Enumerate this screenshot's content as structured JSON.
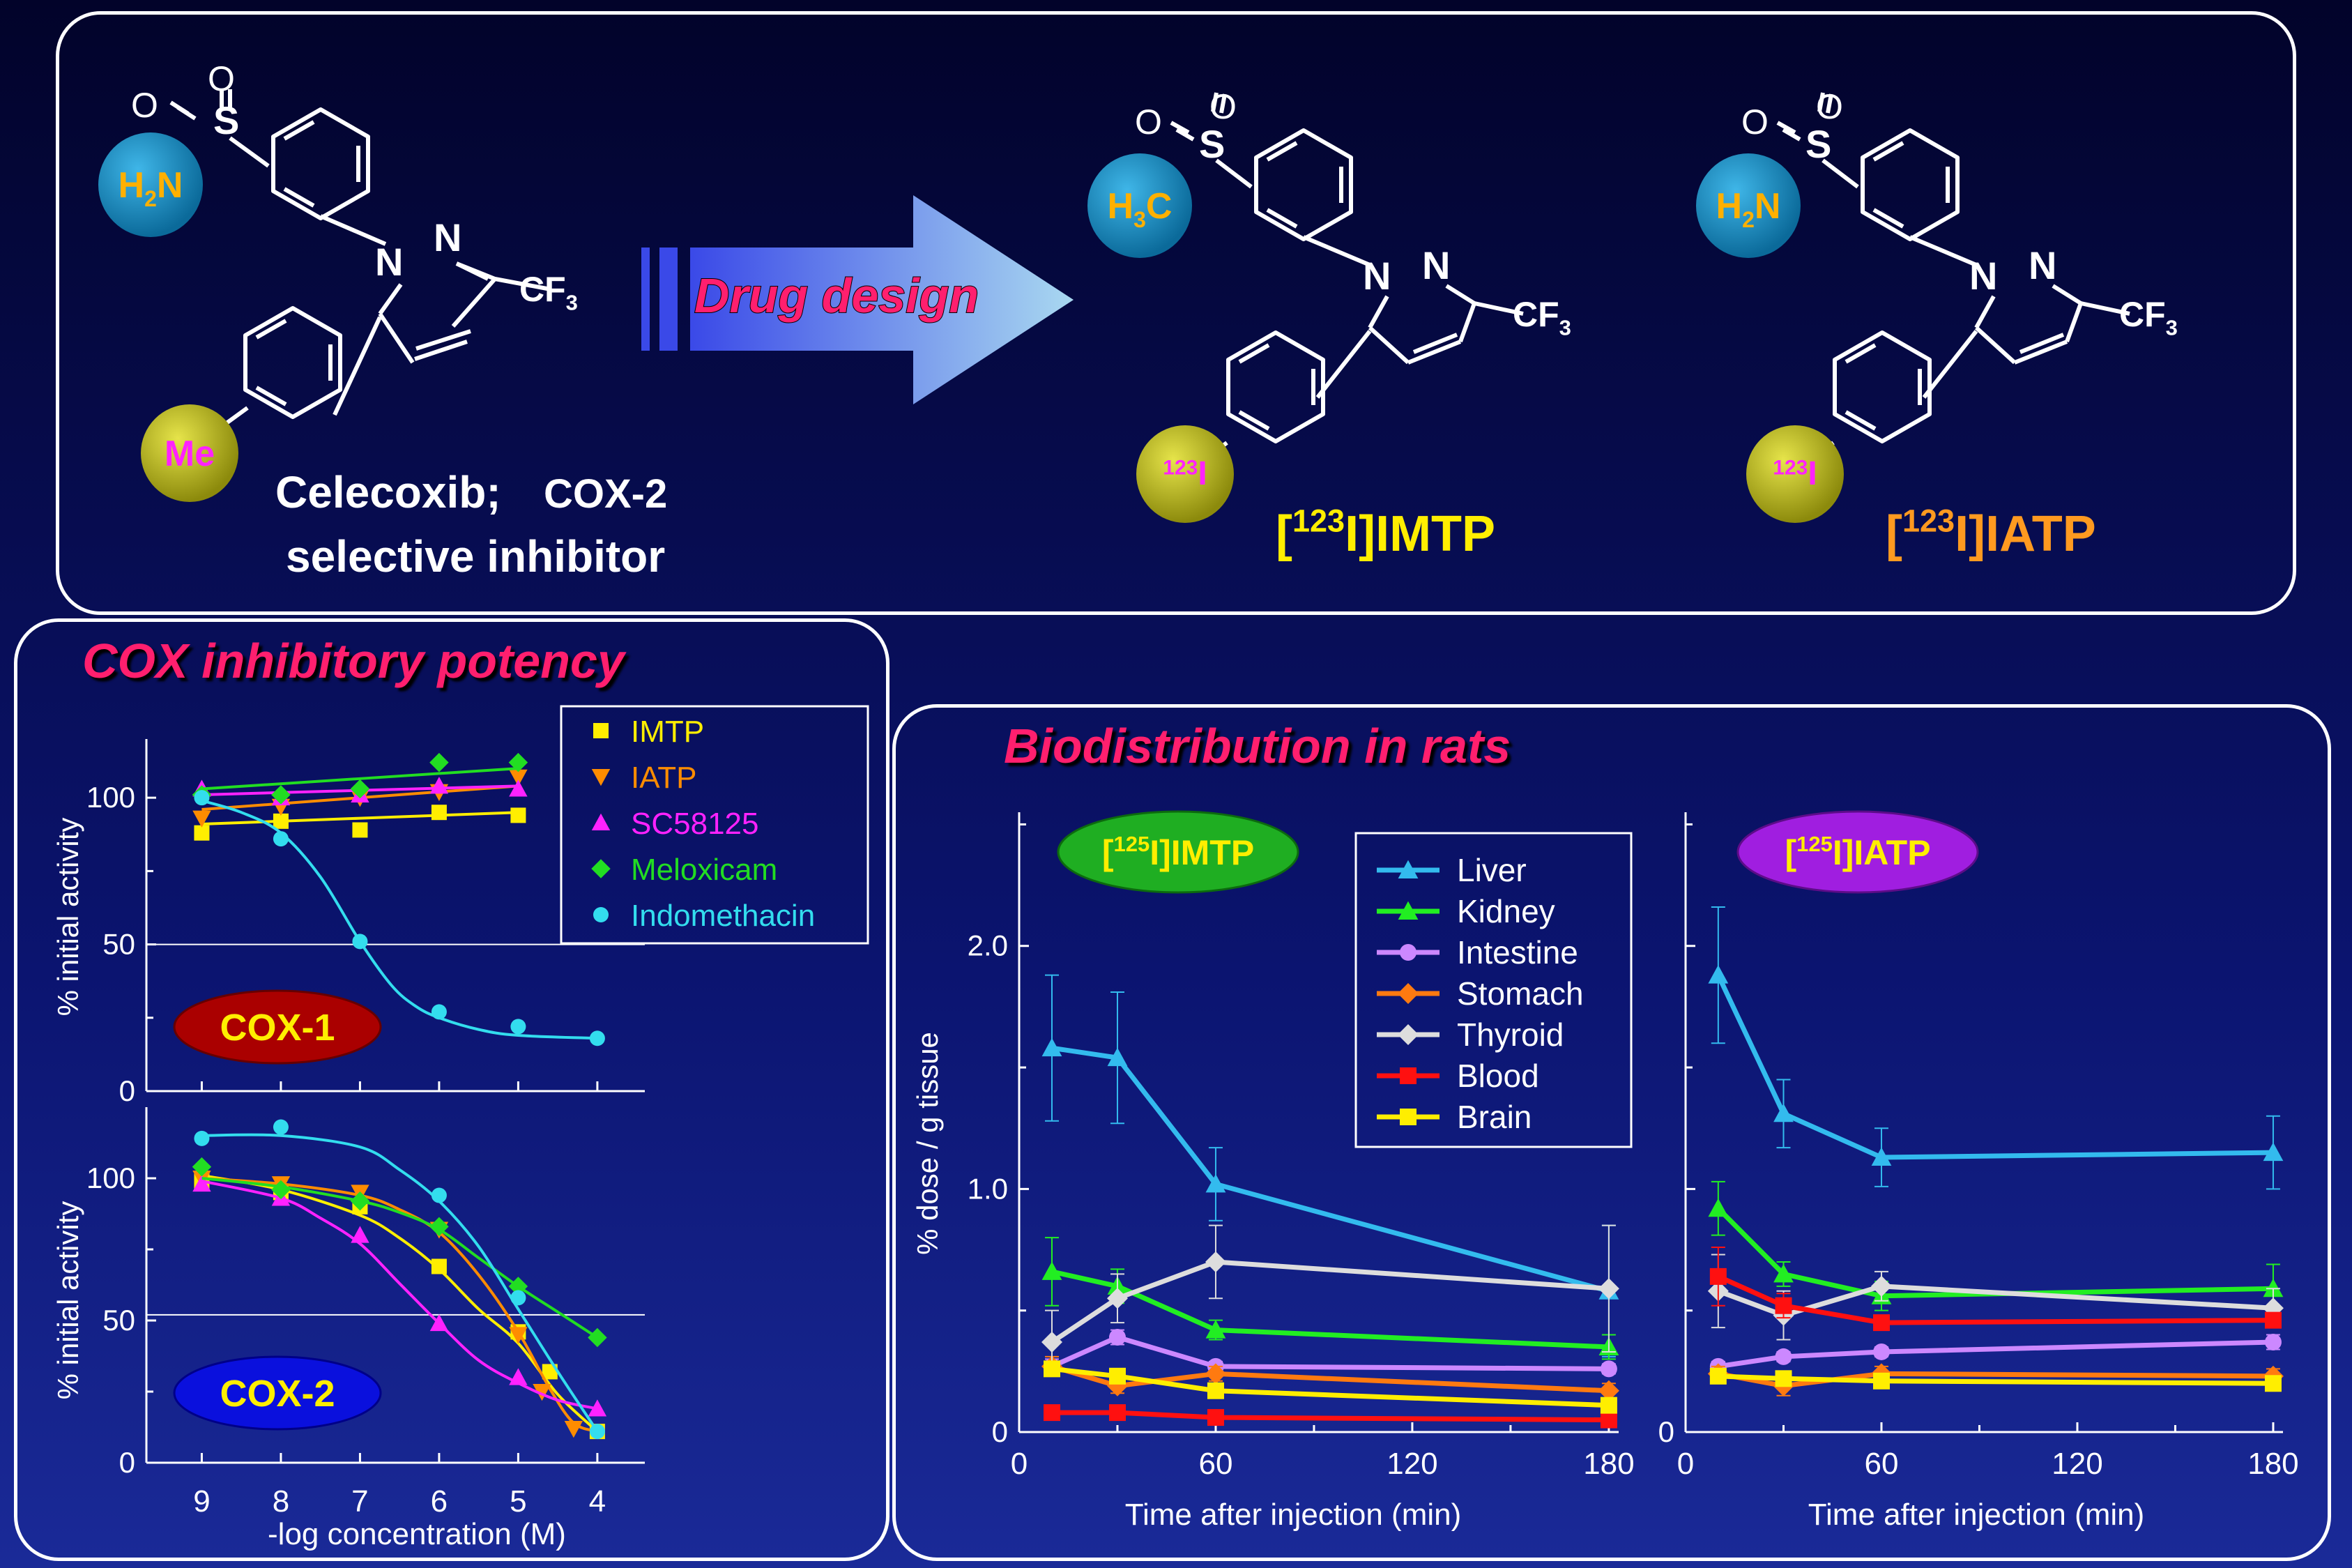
{
  "top": {
    "celecoxib": {
      "label_line1_a": "Celecoxib;",
      "label_line1_b": "COX-2",
      "label_line2": "selective inhibitor",
      "sulfonamide_group": "H2N",
      "methyl_group": "Me"
    },
    "arrow_label": "Drug design",
    "imtp": {
      "name": "[123I]IMTP",
      "group": "H3C",
      "isotope": "123I"
    },
    "iatp": {
      "name": "[123I]IATP",
      "group": "H2N",
      "isotope": "123I"
    },
    "cf3": "CF3",
    "atoms": {
      "S": "S",
      "O": "O",
      "N": "N"
    }
  },
  "cox_panel": {
    "title": "COX inhibitory potency",
    "legend": [
      "IMTP",
      "IATP",
      "SC58125",
      "Meloxicam",
      "Indomethacin"
    ],
    "cox1_badge": "COX-1",
    "cox2_badge": "COX-2",
    "ylabel": "% initial activity",
    "xlabel": "-log concentration (M)"
  },
  "bio_panel": {
    "title": "Biodistribution in rats",
    "ylabel": "% dose / g tissue",
    "xlabel": "Time after injection (min)",
    "left_badge": "[125I]IMTP",
    "right_badge": "[125I]IATP",
    "legend": [
      "Liver",
      "Kidney",
      "Intestine",
      "Stomach",
      "Thyroid",
      "Blood",
      "Brain"
    ]
  },
  "colors": {
    "IMTP": "#ffee00",
    "IATP": "#ff8c00",
    "SC58125": "#ff22ff",
    "Meloxicam": "#22dd22",
    "Indomethacin": "#33ddee",
    "Liver": "#33bbee",
    "Kidney": "#22ee22",
    "Intestine": "#cc88ff",
    "Stomach": "#ff7a10",
    "Thyroid": "#dddddd",
    "Blood": "#ff1010",
    "Brain": "#ffee00",
    "title_pink": "#ff1f6e"
  },
  "chart_data": [
    {
      "type": "scatter",
      "title": "COX-1",
      "xlabel": "-log concentration (M)",
      "ylabel": "% initial activity",
      "x_ticks": [
        9,
        8,
        7,
        6,
        5,
        4
      ],
      "y_ticks": [
        0,
        50,
        100
      ],
      "xlim": [
        9.7,
        3.4
      ],
      "ylim": [
        0,
        120
      ],
      "reference_line": 50,
      "series": [
        {
          "name": "IMTP",
          "marker": "square",
          "x": [
            9,
            8,
            7,
            6,
            5
          ],
          "y": [
            88,
            92,
            89,
            95,
            94
          ],
          "fit": [
            [
              9,
              91
            ],
            [
              5,
              95
            ]
          ]
        },
        {
          "name": "IATP",
          "marker": "triangle-down",
          "x": [
            9,
            8,
            7,
            6,
            5
          ],
          "y": [
            93,
            97,
            100,
            102,
            107
          ],
          "fit": [
            [
              9,
              96
            ],
            [
              5,
              104
            ]
          ]
        },
        {
          "name": "SC58125",
          "marker": "triangle-up",
          "x": [
            9,
            8,
            7,
            6,
            5
          ],
          "y": [
            103,
            100,
            101,
            104,
            103
          ],
          "fit": [
            [
              9,
              101
            ],
            [
              5,
              104
            ]
          ]
        },
        {
          "name": "Meloxicam",
          "marker": "diamond",
          "x": [
            9,
            8,
            7,
            6,
            5
          ],
          "y": [
            101,
            101,
            103,
            112,
            112
          ],
          "fit": [
            [
              9,
              103
            ],
            [
              5,
              110
            ]
          ]
        },
        {
          "name": "Indomethacin",
          "marker": "circle",
          "x": [
            9,
            8,
            7,
            6,
            5,
            4
          ],
          "y": [
            100,
            86,
            51,
            27,
            22,
            18
          ],
          "fit": [
            [
              9,
              99
            ],
            [
              8.5,
              95
            ],
            [
              8,
              88
            ],
            [
              7.5,
              73
            ],
            [
              7,
              51
            ],
            [
              6.6,
              36
            ],
            [
              6.3,
              29
            ],
            [
              6,
              25
            ],
            [
              5.5,
              21
            ],
            [
              5,
              19
            ],
            [
              4,
              18
            ]
          ]
        }
      ]
    },
    {
      "type": "scatter",
      "title": "COX-2",
      "xlabel": "-log concentration (M)",
      "ylabel": "% initial activity",
      "x_ticks": [
        9,
        8,
        7,
        6,
        5,
        4
      ],
      "y_ticks": [
        0,
        50,
        100
      ],
      "xlim": [
        9.7,
        3.4
      ],
      "ylim": [
        0,
        125
      ],
      "reference_line": 52,
      "series": [
        {
          "name": "IMTP",
          "marker": "square",
          "x": [
            9,
            8,
            7,
            6,
            5,
            4.6,
            4
          ],
          "y": [
            99,
            95,
            90,
            69,
            46,
            32,
            11
          ],
          "fit": [
            [
              9,
              101
            ],
            [
              8,
              96
            ],
            [
              7,
              87
            ],
            [
              6.5,
              79
            ],
            [
              6,
              68
            ],
            [
              5.5,
              54
            ],
            [
              5,
              42
            ],
            [
              4.5,
              24
            ],
            [
              4,
              11
            ]
          ]
        },
        {
          "name": "IATP",
          "marker": "triangle-down",
          "x": [
            9,
            8,
            7,
            6,
            5,
            4.7,
            4.3
          ],
          "y": [
            100,
            98,
            95,
            82,
            45,
            25,
            12
          ],
          "fit": [
            [
              9,
              100
            ],
            [
              8,
              98
            ],
            [
              7,
              94
            ],
            [
              6.5,
              89
            ],
            [
              6,
              81
            ],
            [
              5.5,
              66
            ],
            [
              5,
              46
            ],
            [
              4.6,
              26
            ],
            [
              4.3,
              14
            ],
            [
              4,
              11
            ]
          ]
        },
        {
          "name": "SC58125",
          "marker": "triangle-up",
          "x": [
            9,
            8,
            7,
            6,
            5,
            4
          ],
          "y": [
            98,
            93,
            80,
            49,
            30,
            19
          ],
          "fit": [
            [
              9,
              99
            ],
            [
              8,
              93
            ],
            [
              7.5,
              86
            ],
            [
              7,
              77
            ],
            [
              6.5,
              63
            ],
            [
              6,
              49
            ],
            [
              5.5,
              36
            ],
            [
              5,
              28
            ],
            [
              4.5,
              22
            ],
            [
              4,
              19
            ]
          ]
        },
        {
          "name": "Meloxicam",
          "marker": "diamond",
          "x": [
            9,
            8,
            7,
            6,
            5,
            4
          ],
          "y": [
            104,
            96,
            92,
            83,
            62,
            44
          ],
          "fit": [
            [
              9,
              100
            ],
            [
              8,
              97
            ],
            [
              7,
              92
            ],
            [
              6.5,
              88
            ],
            [
              6,
              82
            ],
            [
              5.5,
              72
            ],
            [
              5,
              62
            ],
            [
              4.5,
              53
            ],
            [
              4,
              44
            ]
          ]
        },
        {
          "name": "Indomethacin",
          "marker": "circle",
          "x": [
            9,
            8,
            6,
            5,
            4
          ],
          "y": [
            114,
            118,
            94,
            58,
            11
          ],
          "fit": [
            [
              9,
              115
            ],
            [
              8,
              115
            ],
            [
              7,
              111
            ],
            [
              6.5,
              103
            ],
            [
              6,
              92
            ],
            [
              5.5,
              76
            ],
            [
              5,
              54
            ],
            [
              4.5,
              32
            ],
            [
              4,
              11
            ]
          ]
        }
      ]
    },
    {
      "type": "line",
      "title": "[125I]IMTP",
      "xlabel": "Time after injection (min)",
      "ylabel": "% dose / g tissue",
      "x_ticks": [
        0,
        60,
        120,
        180
      ],
      "y_ticks": [
        0,
        1.0,
        2.0
      ],
      "y_tick_labels": [
        "0",
        "1.0",
        "2.0"
      ],
      "xlim": [
        0,
        183
      ],
      "ylim": [
        0,
        2.55
      ],
      "series": [
        {
          "name": "Liver",
          "marker": "triangle-up",
          "x": [
            10,
            30,
            60,
            180
          ],
          "y": [
            1.58,
            1.54,
            1.02,
            0.58
          ],
          "err": [
            0.3,
            0.27,
            0.15,
            0.27
          ]
        },
        {
          "name": "Kidney",
          "marker": "triangle-up",
          "x": [
            10,
            30,
            60,
            180
          ],
          "y": [
            0.66,
            0.6,
            0.42,
            0.35
          ],
          "err": [
            0.14,
            0.07,
            0.04,
            0.05
          ]
        },
        {
          "name": "Intestine",
          "marker": "circle",
          "x": [
            10,
            30,
            60,
            180
          ],
          "y": [
            0.27,
            0.39,
            0.27,
            0.26
          ],
          "err": [
            0.03,
            0.03,
            0.02,
            0.02
          ]
        },
        {
          "name": "Stomach",
          "marker": "diamond",
          "x": [
            10,
            30,
            60,
            180
          ],
          "y": [
            0.27,
            0.19,
            0.24,
            0.17
          ],
          "err": [
            0.04,
            0.03,
            0.03,
            0.03
          ]
        },
        {
          "name": "Thyroid",
          "marker": "diamond",
          "x": [
            10,
            30,
            60,
            180
          ],
          "y": [
            0.37,
            0.55,
            0.7,
            0.59
          ],
          "err": [
            0.13,
            0.1,
            0.15,
            0.26
          ]
        },
        {
          "name": "Blood",
          "marker": "square",
          "x": [
            10,
            30,
            60,
            180
          ],
          "y": [
            0.08,
            0.08,
            0.06,
            0.05
          ],
          "err": [
            0.01,
            0.01,
            0.01,
            0.01
          ]
        },
        {
          "name": "Brain",
          "marker": "square",
          "x": [
            10,
            30,
            60,
            180
          ],
          "y": [
            0.26,
            0.23,
            0.17,
            0.11
          ],
          "err": [
            0.03,
            0.03,
            0.02,
            0.02
          ]
        }
      ]
    },
    {
      "type": "line",
      "title": "[125I]IATP",
      "xlabel": "Time after injection (min)",
      "ylabel": "% dose / g tissue",
      "x_ticks": [
        0,
        60,
        120,
        180
      ],
      "y_ticks": [
        0,
        1.0,
        2.0
      ],
      "y_tick_labels": [
        "0",
        "",
        ""
      ],
      "xlim": [
        0,
        183
      ],
      "ylim": [
        0,
        2.55
      ],
      "series": [
        {
          "name": "Liver",
          "marker": "triangle-up",
          "x": [
            10,
            30,
            60,
            180
          ],
          "y": [
            1.88,
            1.31,
            1.13,
            1.15
          ],
          "err": [
            0.28,
            0.14,
            0.12,
            0.15
          ]
        },
        {
          "name": "Kidney",
          "marker": "triangle-up",
          "x": [
            10,
            30,
            60,
            180
          ],
          "y": [
            0.92,
            0.65,
            0.56,
            0.59
          ],
          "err": [
            0.11,
            0.05,
            0.06,
            0.1
          ]
        },
        {
          "name": "Intestine",
          "marker": "circle",
          "x": [
            10,
            30,
            60,
            180
          ],
          "y": [
            0.27,
            0.31,
            0.33,
            0.37
          ],
          "err": [
            0.02,
            0.02,
            0.02,
            0.03
          ]
        },
        {
          "name": "Stomach",
          "marker": "diamond",
          "x": [
            10,
            30,
            60,
            180
          ],
          "y": [
            0.24,
            0.19,
            0.24,
            0.23
          ],
          "err": [
            0.03,
            0.04,
            0.03,
            0.03
          ]
        },
        {
          "name": "Thyroid",
          "marker": "diamond",
          "x": [
            10,
            30,
            60,
            180
          ],
          "y": [
            0.58,
            0.48,
            0.6,
            0.51
          ],
          "err": [
            0.15,
            0.1,
            0.06,
            0.08
          ]
        },
        {
          "name": "Blood",
          "marker": "square",
          "x": [
            10,
            30,
            60,
            180
          ],
          "y": [
            0.64,
            0.52,
            0.45,
            0.46
          ],
          "err": [
            0.12,
            0.05,
            0.03,
            0.03
          ]
        },
        {
          "name": "Brain",
          "marker": "square",
          "x": [
            10,
            30,
            60,
            180
          ],
          "y": [
            0.23,
            0.22,
            0.21,
            0.2
          ],
          "err": [
            0.02,
            0.02,
            0.02,
            0.02
          ]
        }
      ]
    }
  ]
}
